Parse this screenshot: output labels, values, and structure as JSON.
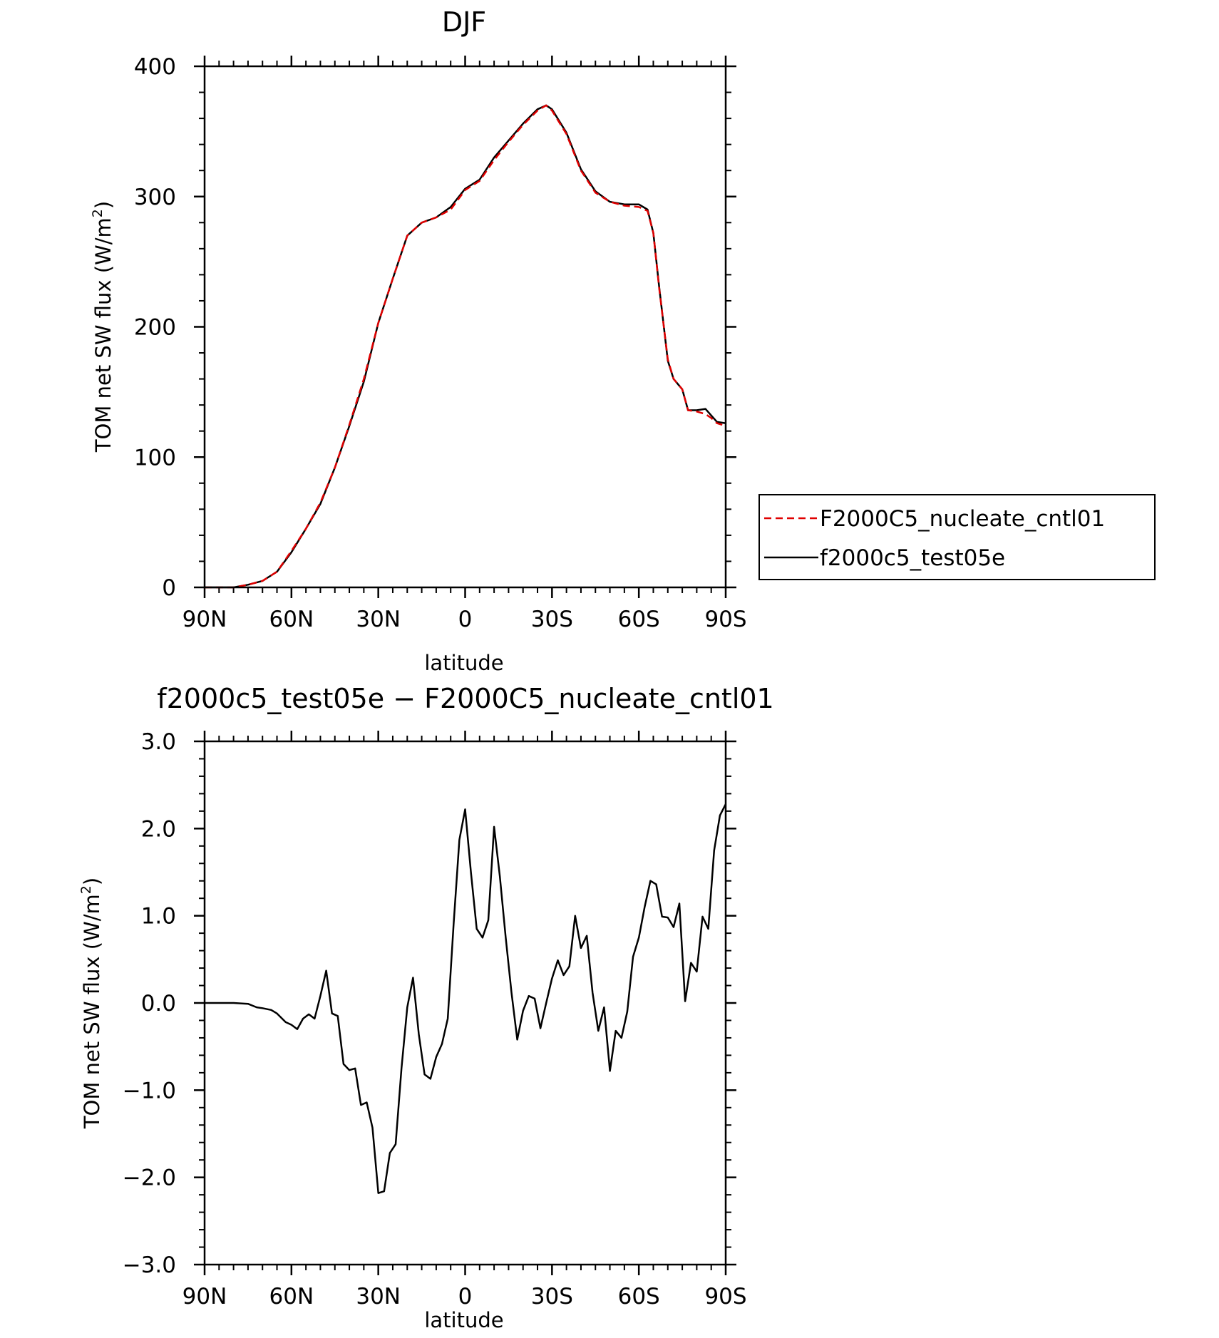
{
  "chart_data": [
    {
      "type": "line",
      "title": "DJF",
      "xlabel": "latitude",
      "ylabel": "TOM net SW flux (W/m²)",
      "ylabel_parts": [
        "TOM net SW flux (W/m",
        "2",
        ")"
      ],
      "xlim": [
        -90,
        90
      ],
      "x_direction": "north-to-south",
      "ylim": [
        0,
        400
      ],
      "xtick_labels": [
        "90N",
        "60N",
        "30N",
        "0",
        "30S",
        "60S",
        "90S"
      ],
      "ytick_labels": [
        "0",
        "100",
        "200",
        "300",
        "400"
      ],
      "grid": false,
      "legend_position": "right",
      "series": [
        {
          "name": "F2000C5_nucleate_cntl01",
          "color": "#e00000",
          "dash": "dashed",
          "x": [
            -90,
            -80,
            -75,
            -70,
            -65,
            -60,
            -55,
            -50,
            -45,
            -40,
            -35,
            -30,
            -25,
            -20,
            -15,
            -10,
            -5,
            0,
            5,
            10,
            15,
            20,
            25,
            28,
            30,
            35,
            40,
            45,
            50,
            55,
            60,
            63,
            65,
            67,
            70,
            72,
            75,
            77,
            80,
            83,
            85,
            87,
            90
          ],
          "y": [
            0,
            0,
            2,
            5,
            12,
            28,
            45,
            65,
            92,
            125,
            160,
            203,
            237,
            270,
            280,
            284,
            290,
            305,
            312,
            328,
            342,
            355,
            366,
            370,
            366,
            348,
            320,
            303,
            296,
            293,
            292,
            289,
            272,
            230,
            175,
            160,
            152,
            136,
            135,
            133,
            130,
            126,
            124
          ]
        },
        {
          "name": "f2000c5_test05e",
          "color": "#000000",
          "dash": "solid",
          "x": [
            -90,
            -80,
            -75,
            -70,
            -65,
            -60,
            -55,
            -50,
            -45,
            -40,
            -35,
            -30,
            -25,
            -20,
            -15,
            -10,
            -5,
            0,
            5,
            10,
            15,
            20,
            25,
            28,
            30,
            35,
            40,
            45,
            50,
            55,
            60,
            63,
            65,
            67,
            70,
            72,
            75,
            77,
            80,
            83,
            85,
            87,
            90
          ],
          "y": [
            0,
            0,
            2,
            5,
            12,
            27,
            45,
            64,
            92,
            124,
            158,
            203,
            237,
            270,
            280,
            284,
            292,
            306,
            313,
            330,
            343,
            356,
            367,
            370,
            367,
            349,
            321,
            304,
            296,
            294,
            294,
            290,
            272,
            231,
            174,
            160,
            152,
            136,
            136,
            137,
            132,
            127,
            126
          ]
        }
      ]
    },
    {
      "type": "line",
      "title": "f2000c5_test05e − F2000C5_nucleate_cntl01",
      "xlabel": "latitude",
      "ylabel": "TOM net SW flux (W/m²)",
      "ylabel_parts": [
        "TOM net SW flux (W/m",
        "2",
        ")"
      ],
      "xlim": [
        -90,
        90
      ],
      "x_direction": "north-to-south",
      "ylim": [
        -3.0,
        3.0
      ],
      "xtick_labels": [
        "90N",
        "60N",
        "30N",
        "0",
        "30S",
        "60S",
        "90S"
      ],
      "ytick_labels": [
        "−3.0",
        "−2.0",
        "−1.0",
        "0.0",
        "1.0",
        "2.0",
        "3.0"
      ],
      "grid": false,
      "series": [
        {
          "color": "#000000",
          "dash": "solid",
          "x": [
            -90,
            -85,
            -80,
            -75,
            -72,
            -70,
            -67,
            -65,
            -62,
            -60,
            -58,
            -56,
            -54,
            -52,
            -50,
            -48,
            -46,
            -44,
            -42,
            -40,
            -38,
            -36,
            -34,
            -32,
            -30,
            -28,
            -26,
            -24,
            -22,
            -20,
            -18,
            -16,
            -14,
            -12,
            -10,
            -8,
            -6,
            -4,
            -2,
            0,
            2,
            4,
            6,
            8,
            10,
            12,
            14,
            16,
            18,
            20,
            22,
            24,
            26,
            28,
            30,
            32,
            34,
            36,
            38,
            40,
            42,
            44,
            46,
            48,
            50,
            52,
            54,
            56,
            58,
            60,
            62,
            64,
            66,
            68,
            70,
            72,
            74,
            76,
            78,
            80,
            82,
            84,
            86,
            88,
            90
          ],
          "y": [
            0.0,
            0.0,
            0.0,
            -0.01,
            -0.05,
            -0.06,
            -0.08,
            -0.12,
            -0.22,
            -0.25,
            -0.3,
            -0.18,
            -0.13,
            -0.18,
            0.08,
            0.37,
            -0.12,
            -0.15,
            -0.7,
            -0.77,
            -0.75,
            -1.17,
            -1.14,
            -1.43,
            -2.18,
            -2.16,
            -1.72,
            -1.62,
            -0.75,
            -0.05,
            0.29,
            -0.36,
            -0.82,
            -0.87,
            -0.62,
            -0.47,
            -0.18,
            0.9,
            1.87,
            2.22,
            1.5,
            0.85,
            0.75,
            0.95,
            2.02,
            1.45,
            0.75,
            0.12,
            -0.42,
            -0.09,
            0.08,
            0.05,
            -0.29,
            0.0,
            0.28,
            0.49,
            0.32,
            0.42,
            1.0,
            0.63,
            0.77,
            0.12,
            -0.32,
            -0.05,
            -0.78,
            -0.32,
            -0.4,
            -0.1,
            0.53,
            0.75,
            1.1,
            1.4,
            1.36,
            0.99,
            0.98,
            0.87,
            1.14,
            0.02,
            0.46,
            0.36,
            0.99,
            0.85,
            1.75,
            2.15,
            2.28
          ]
        }
      ]
    }
  ]
}
